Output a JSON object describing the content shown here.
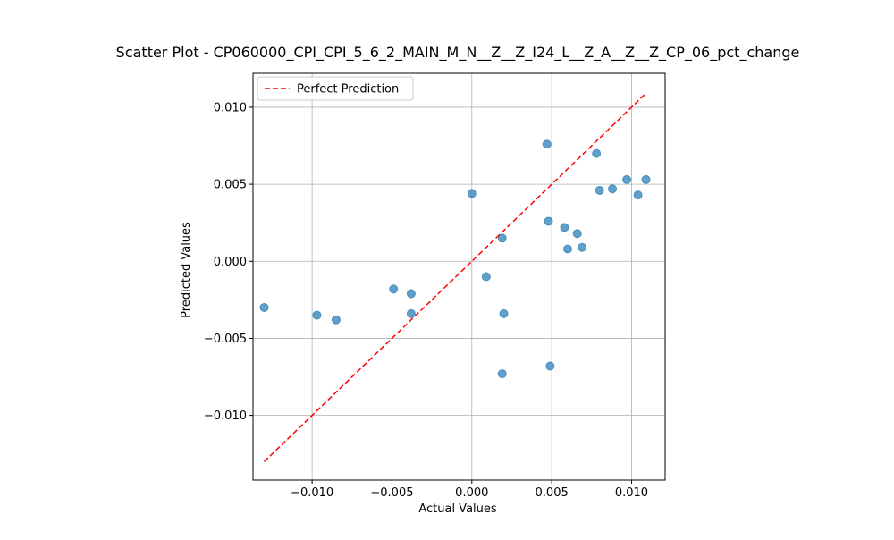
{
  "chart_data": {
    "type": "scatter",
    "title": "Scatter Plot - CP060000_CPI_CPI_5_6_2_MAIN_M_N__Z__Z_I24_L__Z_A__Z__Z_CP_06_pct_change",
    "xlabel": "Actual Values",
    "ylabel": "Predicted Values",
    "xlim": [
      -0.0137,
      0.0121
    ],
    "ylim": [
      -0.0142,
      0.0122
    ],
    "x_ticks": [
      -0.01,
      -0.005,
      0.0,
      0.005,
      0.01
    ],
    "x_tick_labels": [
      "−0.010",
      "−0.005",
      "0.000",
      "0.005",
      "0.010"
    ],
    "y_ticks": [
      -0.01,
      -0.005,
      0.0,
      0.005,
      0.01
    ],
    "y_tick_labels": [
      "−0.010",
      "−0.005",
      "0.000",
      "0.005",
      "0.010"
    ],
    "grid": true,
    "legend_position": "top-left",
    "series": [
      {
        "kind": "points",
        "color": "#1f77b4",
        "x": [
          -0.013,
          -0.0097,
          -0.0085,
          -0.0049,
          -0.0038,
          -0.0038,
          0.0,
          0.0009,
          0.0019,
          0.0019,
          0.002,
          0.0047,
          0.0048,
          0.0049,
          0.0058,
          0.006,
          0.0066,
          0.0069,
          0.0078,
          0.008,
          0.0088,
          0.0097,
          0.0104,
          0.0109
        ],
        "y": [
          -0.003,
          -0.0035,
          -0.0038,
          -0.0018,
          -0.0021,
          -0.0034,
          0.0044,
          -0.001,
          0.0015,
          -0.0073,
          -0.0034,
          0.0076,
          0.0026,
          -0.0068,
          0.0022,
          0.0008,
          0.0018,
          0.0009,
          0.007,
          0.0046,
          0.0047,
          0.0053,
          0.0043,
          0.0053
        ]
      },
      {
        "kind": "line",
        "name": "Perfect Prediction",
        "color": "#ff0000",
        "style": "dashed",
        "x": [
          -0.013,
          0.0109
        ],
        "y": [
          -0.013,
          0.0109
        ]
      }
    ]
  }
}
